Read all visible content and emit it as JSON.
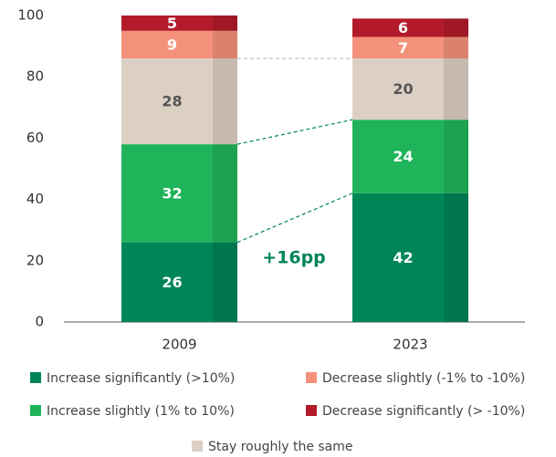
{
  "chart_data": {
    "type": "stacked_bar",
    "categories": [
      "2009",
      "2023"
    ],
    "series": [
      {
        "name": "Increase significantly (>10%)",
        "color": "#008557",
        "values": [
          26,
          42
        ]
      },
      {
        "name": "Increase slightly (1% to 10%)",
        "color": "#1fb45a",
        "values": [
          32,
          24
        ]
      },
      {
        "name": "Stay roughly the same",
        "color": "#dccfc4",
        "values": [
          28,
          20
        ]
      },
      {
        "name": "Decrease slightly (-1% to -10%)",
        "color": "#f4917a",
        "values": [
          9,
          7
        ]
      },
      {
        "name": "Decrease significantly (> -10%)",
        "color": "#b31b2b",
        "values": [
          5,
          6
        ]
      }
    ],
    "ylim": [
      0,
      100
    ],
    "yticks": [
      0,
      20,
      40,
      60,
      80,
      100
    ],
    "grid": false,
    "annotations": [
      "+16pp"
    ]
  }
}
